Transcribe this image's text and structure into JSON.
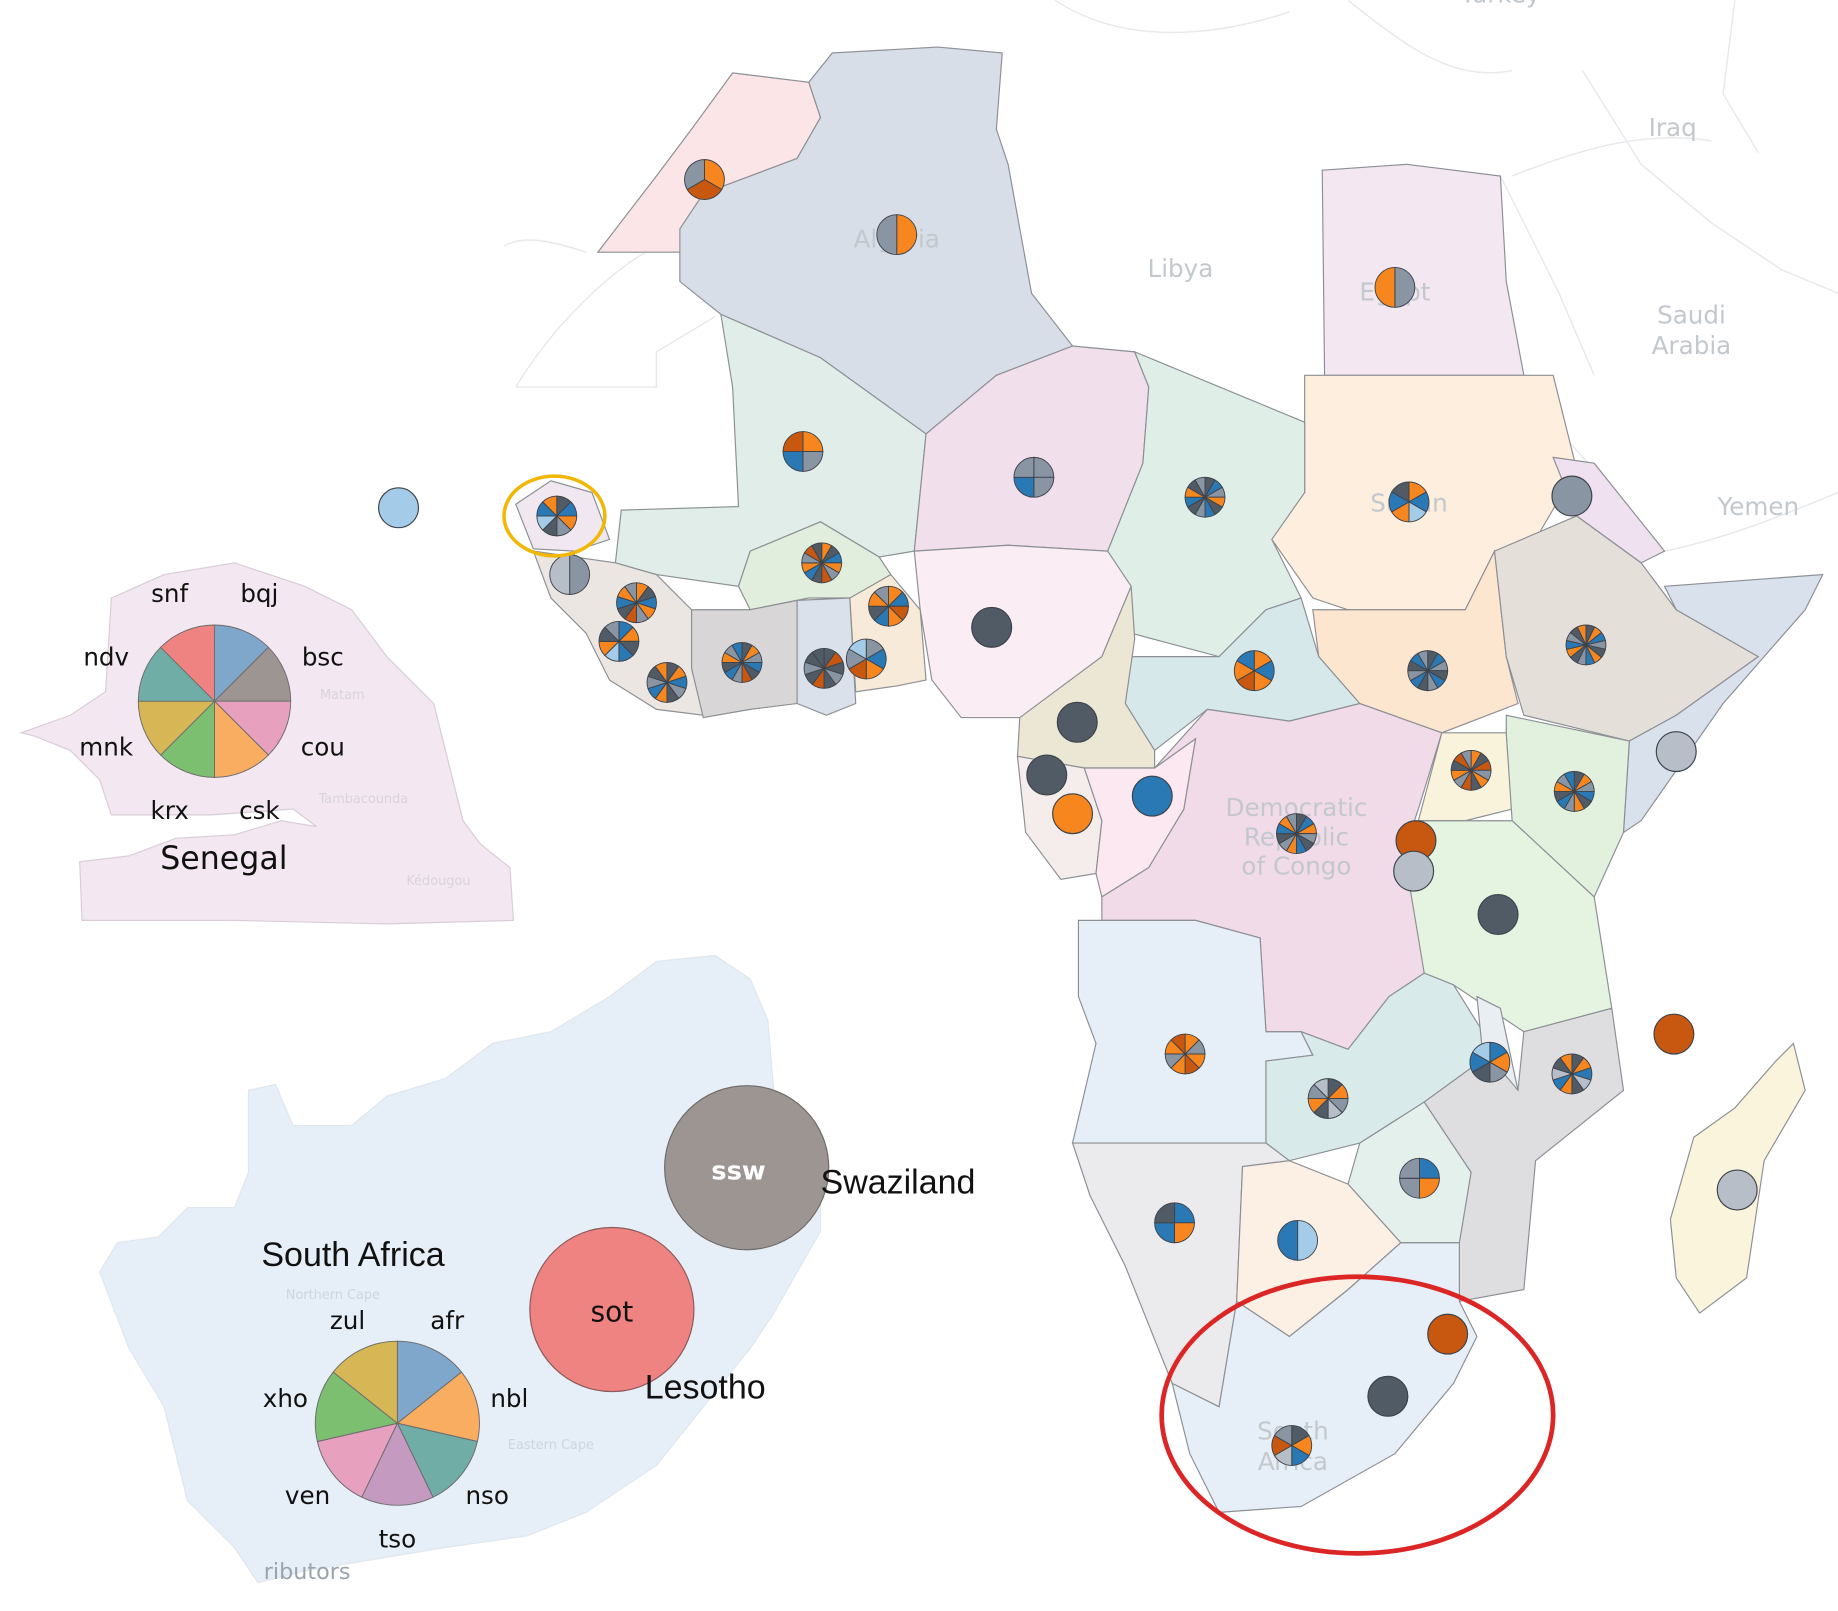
{
  "colors": {
    "orange": "#f7861e",
    "blue": "#2a78b4",
    "gray": "#8a95a3",
    "dark": "#505b66",
    "darkorange": "#c85710",
    "lightblue": "#a4cce8",
    "lightgray": "#b8bec8",
    "highlight_red": "#dc2626",
    "highlight_yellow": "#f2b705"
  },
  "map_labels": {
    "turkey": "Turkey",
    "iraq": "Iraq",
    "libya": "Libya",
    "saudi_arabia_1": "Saudi",
    "saudi_arabia_2": "Arabia",
    "yemen": "Yemen",
    "algeria": "Algeria",
    "egypt": "Egypt",
    "sudan": "Sudan",
    "drc_1": "Democratic",
    "drc_2": "Republic",
    "drc_3": "of Congo",
    "south_africa_1": "South",
    "south_africa_2": "Africa"
  },
  "markers": [
    {
      "slices": [
        "orange",
        "darkorange",
        "gray"
      ]
    },
    {
      "slices": [
        "orange",
        "gray"
      ]
    },
    {
      "slices": [
        "gray",
        "orange"
      ]
    },
    {
      "slices": [
        "orange",
        "gray",
        "blue",
        "darkorange"
      ]
    },
    {
      "slices": [
        "gray",
        "gray",
        "blue",
        "gray"
      ]
    },
    {
      "slices": [
        "dark",
        "blue",
        "gray",
        "orange",
        "dark",
        "blue",
        "gray",
        "dark",
        "blue",
        "orange",
        "dark",
        "gray"
      ]
    },
    {
      "slices": [
        "orange",
        "blue",
        "lightblue",
        "orange",
        "blue",
        "dark"
      ]
    },
    {
      "slices": [
        "gray"
      ]
    },
    {
      "slices": [
        "dark",
        "blue",
        "orange",
        "gray",
        "dark",
        "lightblue",
        "blue",
        "orange"
      ]
    },
    {
      "slices": [
        "lightblue"
      ]
    },
    {
      "slices": [
        "gray",
        "lightgray"
      ]
    },
    {
      "slices": [
        "orange",
        "dark",
        "blue",
        "orange",
        "gray",
        "darkorange",
        "dark",
        "blue",
        "orange",
        "gray",
        "darkorange",
        "dark"
      ]
    },
    {
      "slices": [
        "orange",
        "dark",
        "blue",
        "orange",
        "gray",
        "darkorange",
        "dark",
        "blue",
        "orange",
        "gray"
      ]
    },
    {
      "slices": [
        "orange",
        "blue",
        "darkorange",
        "orange",
        "blue",
        "dark",
        "orange",
        "gray"
      ]
    },
    {
      "slices": [
        "dark"
      ]
    },
    {
      "slices": [
        "blue",
        "orange",
        "dark",
        "blue",
        "lightblue",
        "orange",
        "dark",
        "gray"
      ]
    },
    {
      "slices": [
        "dark",
        "darkorange",
        "dark",
        "gray",
        "dark",
        "darkorange",
        "dark",
        "gray",
        "dark",
        "dark"
      ]
    },
    {
      "slices": [
        "gray",
        "blue",
        "orange",
        "darkorange",
        "gray",
        "lightblue"
      ]
    },
    {
      "slices": [
        "dark",
        "orange",
        "gray",
        "blue",
        "dark",
        "darkorange",
        "gray",
        "blue",
        "dark",
        "orange",
        "gray",
        "blue"
      ]
    },
    {
      "slices": [
        "dark",
        "orange",
        "blue",
        "gray",
        "dark",
        "orange",
        "blue",
        "gray",
        "dark",
        "orange"
      ]
    },
    {
      "slices": [
        "dark",
        "blue",
        "gray",
        "dark",
        "blue",
        "gray",
        "dark",
        "blue",
        "gray",
        "dark",
        "blue",
        "gray"
      ]
    },
    {
      "slices": [
        "dark",
        "orange",
        "blue",
        "gray",
        "dark",
        "orange",
        "blue",
        "gray",
        "dark",
        "orange",
        "blue",
        "gray",
        "dark",
        "orange"
      ]
    },
    {
      "slices": [
        "orange",
        "blue",
        "orange",
        "darkorange",
        "orange",
        "blue"
      ]
    },
    {
      "slices": [
        "dark"
      ]
    },
    {
      "slices": [
        "dark"
      ]
    },
    {
      "slices": [
        "orange"
      ]
    },
    {
      "slices": [
        "blue"
      ]
    },
    {
      "slices": [
        "orange",
        "dark",
        "darkorange",
        "gray",
        "orange",
        "dark",
        "darkorange",
        "gray",
        "orange",
        "dark",
        "darkorange",
        "gray"
      ]
    },
    {
      "slices": [
        "dark",
        "orange",
        "gray",
        "blue",
        "dark",
        "orange",
        "gray",
        "blue",
        "dark",
        "orange",
        "gray",
        "blue"
      ]
    },
    {
      "slices": [
        "lightgray"
      ]
    },
    {
      "slices": [
        "dark",
        "blue",
        "orange",
        "gray",
        "dark",
        "blue",
        "orange",
        "gray",
        "dark",
        "blue",
        "orange",
        "gray"
      ]
    },
    {
      "slices": [
        "darkorange"
      ]
    },
    {
      "slices": [
        "lightgray"
      ]
    },
    {
      "slices": [
        "dark"
      ]
    },
    {
      "slices": [
        "darkorange"
      ]
    },
    {
      "slices": [
        "orange",
        "gray",
        "orange",
        "darkorange",
        "orange",
        "gray",
        "orange",
        "darkorange"
      ]
    },
    {
      "slices": [
        "dark",
        "orange",
        "gray",
        "lightgray",
        "dark",
        "orange",
        "gray",
        "lightgray"
      ]
    },
    {
      "slices": [
        "blue",
        "orange",
        "gray",
        "dark",
        "blue",
        "lightblue"
      ]
    },
    {
      "slices": [
        "dark",
        "orange",
        "blue",
        "lightgray",
        "dark",
        "orange",
        "blue",
        "lightgray",
        "dark",
        "orange"
      ]
    },
    {
      "slices": [
        "blue",
        "orange",
        "gray",
        "gray"
      ]
    },
    {
      "slices": [
        "lightgray"
      ]
    },
    {
      "slices": [
        "blue",
        "orange",
        "blue",
        "dark"
      ]
    },
    {
      "slices": [
        "lightblue",
        "blue"
      ]
    },
    {
      "slices": [
        "darkorange"
      ]
    },
    {
      "slices": [
        "dark"
      ]
    },
    {
      "slices": [
        "dark",
        "orange",
        "blue",
        "lightgray",
        "darkorange",
        "gray"
      ]
    }
  ],
  "senegal_inset": {
    "title": "Senegal",
    "regions": [
      "Matam",
      "Tambacounda",
      "Kédougou"
    ],
    "slices": [
      {
        "label": "bqj",
        "color": "#7fa7cc"
      },
      {
        "label": "bsc",
        "color": "#9d9592"
      },
      {
        "label": "cou",
        "color": "#e7a0bd"
      },
      {
        "label": "csk",
        "color": "#f8ad60"
      },
      {
        "label": "krx",
        "color": "#7dbf70"
      },
      {
        "label": "mnk",
        "color": "#d6b655"
      },
      {
        "label": "ndv",
        "color": "#70ada7"
      },
      {
        "label": "snf",
        "color": "#ef8381"
      }
    ]
  },
  "south_africa_inset": {
    "title": "South Africa",
    "regions": [
      "Northern Cape",
      "Eastern Cape"
    ],
    "footer_fragment": "ributors",
    "slices": [
      {
        "label": "afr",
        "color": "#7fa7cc"
      },
      {
        "label": "nbl",
        "color": "#f8ad60"
      },
      {
        "label": "nso",
        "color": "#70ada7"
      },
      {
        "label": "tso",
        "color": "#c59ac0"
      },
      {
        "label": "ven",
        "color": "#e7a0bd"
      },
      {
        "label": "xho",
        "color": "#7dbf70"
      },
      {
        "label": "zul",
        "color": "#d6b655"
      }
    ],
    "lesotho": {
      "name": "Lesotho",
      "label": "sot",
      "color": "#ef8381"
    },
    "swaziland": {
      "name": "Swaziland",
      "label": "ssw",
      "color": "#9d9592"
    }
  }
}
